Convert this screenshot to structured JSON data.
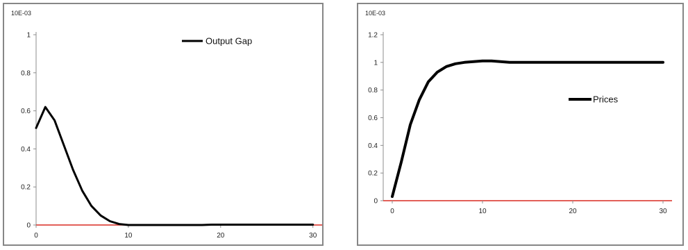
{
  "colors": {
    "series": "#000000",
    "zero_axis": "#d82a20",
    "axis": "#8c8c8c",
    "border": "#868686"
  },
  "chart_data": [
    {
      "type": "line",
      "unit_label": "10E-03",
      "xlim": [
        0,
        31
      ],
      "ylim": [
        0,
        1
      ],
      "x_ticks": [
        0,
        10,
        20,
        30
      ],
      "y_ticks": [
        0,
        0.2,
        0.4,
        0.6,
        0.8,
        1
      ],
      "y_tick_labels": [
        "0",
        "0.2",
        "0.4",
        "0.6",
        "0.8",
        "1"
      ],
      "legend": "top-right",
      "grid": false,
      "series": [
        {
          "name": "Output Gap",
          "x": [
            0,
            1,
            2,
            3,
            4,
            5,
            6,
            7,
            8,
            9,
            10,
            11,
            12,
            13,
            14,
            15,
            16,
            17,
            18,
            19,
            20,
            21,
            22,
            23,
            24,
            25,
            26,
            27,
            28,
            29,
            30
          ],
          "y": [
            0.51,
            0.62,
            0.55,
            0.42,
            0.29,
            0.18,
            0.1,
            0.05,
            0.02,
            0.005,
            0,
            0,
            0,
            0,
            0,
            0,
            0,
            0,
            0,
            0.002,
            0.002,
            0.002,
            0.002,
            0.002,
            0.002,
            0.002,
            0.002,
            0.002,
            0.002,
            0.002,
            0.002
          ]
        }
      ]
    },
    {
      "type": "line",
      "unit_label": "10E-03",
      "xlim": [
        -1,
        31
      ],
      "ylim": [
        0,
        1.2
      ],
      "x_ticks": [
        0,
        10,
        20,
        30
      ],
      "y_ticks": [
        0,
        0.2,
        0.4,
        0.6,
        0.8,
        1,
        1.2
      ],
      "y_tick_labels": [
        "0",
        "0.2",
        "0.4",
        "0.6",
        "0.8",
        "1",
        "1.2"
      ],
      "legend": "right",
      "grid": false,
      "series": [
        {
          "name": "Prices",
          "x": [
            0,
            1,
            2,
            3,
            4,
            5,
            6,
            7,
            8,
            9,
            10,
            11,
            12,
            13,
            14,
            15,
            16,
            17,
            18,
            19,
            20,
            21,
            22,
            23,
            24,
            25,
            26,
            27,
            28,
            29,
            30
          ],
          "y": [
            0.03,
            0.28,
            0.55,
            0.73,
            0.86,
            0.93,
            0.97,
            0.99,
            1.0,
            1.005,
            1.01,
            1.01,
            1.005,
            1.0,
            1.0,
            1.0,
            1.0,
            1.0,
            1.0,
            1.0,
            1.0,
            1.0,
            1.0,
            1.0,
            1.0,
            1.0,
            1.0,
            1.0,
            1.0,
            1.0,
            1.0
          ]
        }
      ]
    }
  ]
}
